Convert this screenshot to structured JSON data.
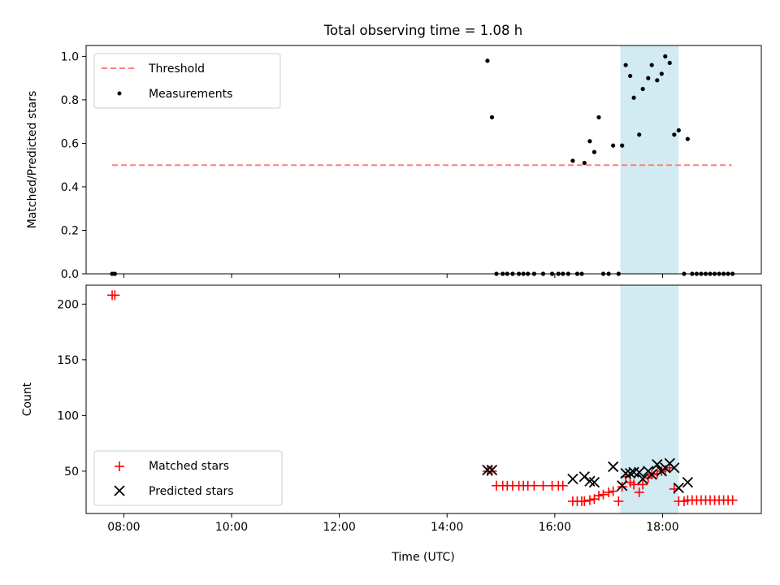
{
  "title": "Total observing time = 1.08 h",
  "xlabel": "Time (UTC)",
  "colors": {
    "threshold": "#ff7f7f",
    "measurement": "#000000",
    "matched": "#ff0000",
    "predicted": "#000000",
    "highlight": "#add8e6"
  },
  "chart_data": [
    {
      "type": "scatter",
      "ylabel": "Matched/Predicted stars",
      "xlim": [
        "07:18",
        "19:50"
      ],
      "ylim": [
        0,
        1.05
      ],
      "xticks": [
        "08:00",
        "10:00",
        "12:00",
        "14:00",
        "16:00",
        "18:00"
      ],
      "yticks": [
        "0.0",
        "0.2",
        "0.4",
        "0.6",
        "0.8",
        "1.0"
      ],
      "legend_position": "upper-left",
      "highlight_span": [
        "17:13",
        "18:18"
      ],
      "threshold": {
        "name": "Threshold",
        "value": 0.5,
        "x": [
          "07:47",
          "19:17"
        ]
      },
      "series": [
        {
          "name": "Measurements",
          "points": [
            [
              "07:47",
              0
            ],
            [
              "07:50",
              0
            ],
            [
              "14:45",
              0.98
            ],
            [
              "14:50",
              0.72
            ],
            [
              "14:55",
              0
            ],
            [
              "15:02",
              0
            ],
            [
              "15:07",
              0
            ],
            [
              "15:13",
              0
            ],
            [
              "15:20",
              0
            ],
            [
              "15:25",
              0
            ],
            [
              "15:30",
              0
            ],
            [
              "15:37",
              0
            ],
            [
              "15:47",
              0
            ],
            [
              "15:57",
              0
            ],
            [
              "16:04",
              0
            ],
            [
              "16:09",
              0
            ],
            [
              "16:15",
              0
            ],
            [
              "16:25",
              0
            ],
            [
              "16:30",
              0
            ],
            [
              "16:20",
              0.52
            ],
            [
              "16:33",
              0.51
            ],
            [
              "16:39",
              0.61
            ],
            [
              "16:44",
              0.56
            ],
            [
              "16:49",
              0.72
            ],
            [
              "16:54",
              0
            ],
            [
              "17:00",
              0
            ],
            [
              "17:05",
              0.59
            ],
            [
              "17:11",
              0
            ],
            [
              "17:15",
              0.59
            ],
            [
              "17:19",
              0.96
            ],
            [
              "17:24",
              0.91
            ],
            [
              "17:28",
              0.81
            ],
            [
              "17:34",
              0.64
            ],
            [
              "17:38",
              0.85
            ],
            [
              "17:44",
              0.9
            ],
            [
              "17:48",
              0.96
            ],
            [
              "17:54",
              0.89
            ],
            [
              "17:59",
              0.92
            ],
            [
              "18:03",
              1.0
            ],
            [
              "18:08",
              0.97
            ],
            [
              "18:13",
              0.64
            ],
            [
              "18:18",
              0.66
            ],
            [
              "18:24",
              0
            ],
            [
              "18:28",
              0.62
            ],
            [
              "18:33",
              0
            ],
            [
              "18:38",
              0
            ],
            [
              "18:43",
              0
            ],
            [
              "18:48",
              0
            ],
            [
              "18:53",
              0
            ],
            [
              "18:58",
              0
            ],
            [
              "19:03",
              0
            ],
            [
              "19:08",
              0
            ],
            [
              "19:13",
              0
            ],
            [
              "19:18",
              0
            ]
          ]
        }
      ]
    },
    {
      "type": "scatter",
      "ylabel": "Count",
      "xlim": [
        "07:18",
        "19:50"
      ],
      "ylim": [
        12,
        217
      ],
      "xticks": [
        "08:00",
        "10:00",
        "12:00",
        "14:00",
        "16:00",
        "18:00"
      ],
      "yticks": [
        "50",
        "100",
        "150",
        "200"
      ],
      "legend_position": "lower-left",
      "highlight_span": [
        "17:13",
        "18:18"
      ],
      "series": [
        {
          "name": "Matched stars",
          "marker": "plus",
          "points": [
            [
              "07:47",
              208
            ],
            [
              "07:50",
              208
            ],
            [
              "14:45",
              50
            ],
            [
              "14:50",
              50
            ],
            [
              "14:55",
              37
            ],
            [
              "15:02",
              37
            ],
            [
              "15:07",
              37
            ],
            [
              "15:13",
              37
            ],
            [
              "15:20",
              37
            ],
            [
              "15:25",
              37
            ],
            [
              "15:30",
              37
            ],
            [
              "15:37",
              37
            ],
            [
              "15:47",
              37
            ],
            [
              "15:57",
              37
            ],
            [
              "16:04",
              37
            ],
            [
              "16:09",
              37
            ],
            [
              "16:20",
              23
            ],
            [
              "16:25",
              23
            ],
            [
              "16:30",
              23
            ],
            [
              "16:33",
              23
            ],
            [
              "16:39",
              24
            ],
            [
              "16:44",
              25
            ],
            [
              "16:49",
              28
            ],
            [
              "16:54",
              29
            ],
            [
              "17:00",
              31
            ],
            [
              "17:05",
              32
            ],
            [
              "17:11",
              23
            ],
            [
              "17:15",
              36
            ],
            [
              "17:19",
              45
            ],
            [
              "17:24",
              40
            ],
            [
              "17:28",
              38
            ],
            [
              "17:34",
              31
            ],
            [
              "17:38",
              38
            ],
            [
              "17:44",
              44
            ],
            [
              "17:48",
              47
            ],
            [
              "17:54",
              48
            ],
            [
              "17:59",
              50
            ],
            [
              "18:03",
              51
            ],
            [
              "18:08",
              53
            ],
            [
              "18:13",
              34
            ],
            [
              "18:18",
              23
            ],
            [
              "18:24",
              23
            ],
            [
              "18:28",
              24
            ],
            [
              "18:33",
              24
            ],
            [
              "18:38",
              24
            ],
            [
              "18:43",
              24
            ],
            [
              "18:48",
              24
            ],
            [
              "18:53",
              24
            ],
            [
              "18:58",
              24
            ],
            [
              "19:03",
              24
            ],
            [
              "19:08",
              24
            ],
            [
              "19:13",
              24
            ],
            [
              "19:18",
              24
            ]
          ]
        },
        {
          "name": "Predicted stars",
          "marker": "x",
          "points": [
            [
              "14:45",
              51
            ],
            [
              "14:50",
              51
            ],
            [
              "16:20",
              43
            ],
            [
              "16:33",
              45
            ],
            [
              "16:39",
              41
            ],
            [
              "16:44",
              40
            ],
            [
              "17:05",
              54
            ],
            [
              "17:15",
              37
            ],
            [
              "17:19",
              48
            ],
            [
              "17:24",
              48
            ],
            [
              "17:28",
              49
            ],
            [
              "17:34",
              49
            ],
            [
              "17:38",
              43
            ],
            [
              "17:44",
              50
            ],
            [
              "17:48",
              47
            ],
            [
              "17:54",
              56
            ],
            [
              "17:59",
              50
            ],
            [
              "18:03",
              53
            ],
            [
              "18:08",
              57
            ],
            [
              "18:13",
              53
            ],
            [
              "18:18",
              35
            ],
            [
              "18:28",
              40
            ]
          ]
        }
      ]
    }
  ]
}
